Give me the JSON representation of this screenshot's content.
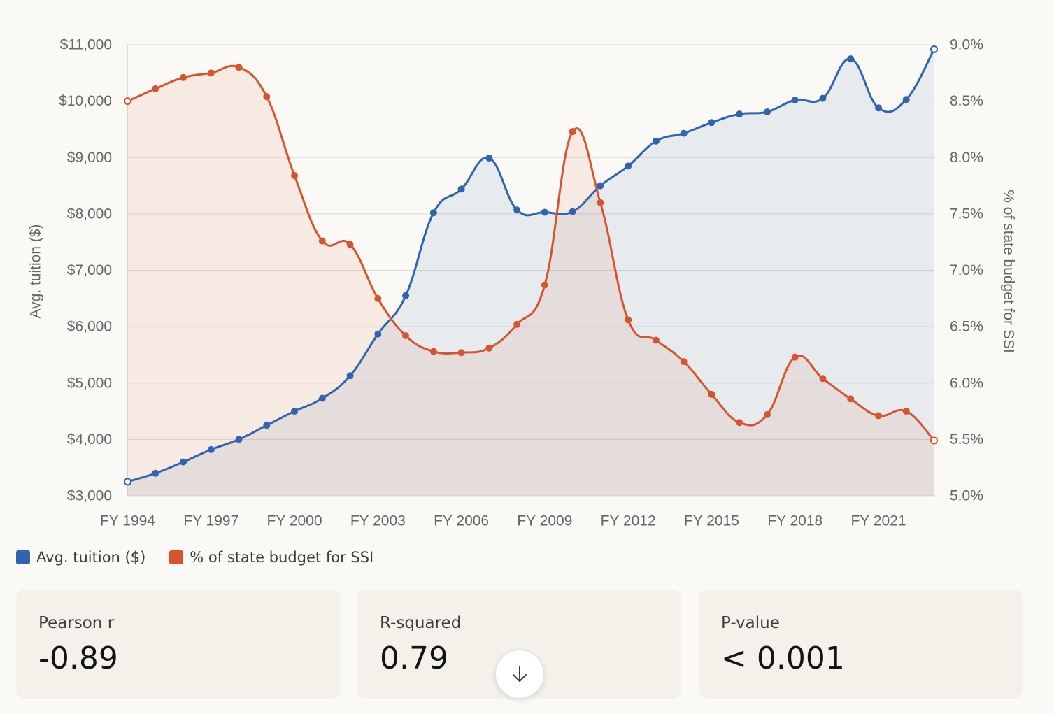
{
  "chart_data": {
    "type": "area",
    "x": [
      "FY 1994",
      "FY 1995",
      "FY 1996",
      "FY 1997",
      "FY 1998",
      "FY 1999",
      "FY 2000",
      "FY 2001",
      "FY 2002",
      "FY 2003",
      "FY 2004",
      "FY 2005",
      "FY 2006",
      "FY 2007",
      "FY 2008",
      "FY 2009",
      "FY 2010",
      "FY 2011",
      "FY 2012",
      "FY 2013",
      "FY 2014",
      "FY 2015",
      "FY 2016",
      "FY 2017",
      "FY 2018",
      "FY 2019",
      "FY 2020",
      "FY 2021",
      "FY 2022",
      "FY 2023"
    ],
    "x_tick_labels": [
      "FY 1994",
      "FY 1997",
      "FY 2000",
      "FY 2003",
      "FY 2006",
      "FY 2009",
      "FY 2012",
      "FY 2015",
      "FY 2018",
      "FY 2021"
    ],
    "series": [
      {
        "name": "Avg. tuition ($)",
        "axis": "left",
        "color": "#2f64b0",
        "values": [
          3250,
          3400,
          3600,
          3820,
          4000,
          4250,
          4500,
          4730,
          5130,
          5870,
          6550,
          8020,
          8440,
          8990,
          8070,
          8030,
          8040,
          8500,
          8850,
          9290,
          9430,
          9620,
          9770,
          9810,
          10020,
          10050,
          10750,
          9880,
          10030,
          10920
        ]
      },
      {
        "name": "% of state budget for SSI",
        "axis": "right",
        "color": "#d6552f",
        "values": [
          8.5,
          8.61,
          8.71,
          8.75,
          8.8,
          8.54,
          7.84,
          7.26,
          7.23,
          6.75,
          6.42,
          6.28,
          6.27,
          6.31,
          6.52,
          6.87,
          8.23,
          7.6,
          6.56,
          6.38,
          6.19,
          5.9,
          5.65,
          5.72,
          6.23,
          6.04,
          5.86,
          5.71,
          5.75,
          5.49
        ]
      }
    ],
    "ylim_left": [
      3000,
      11000
    ],
    "ylim_right": [
      5.0,
      9.0
    ],
    "y_ticks_left": [
      "$3,000",
      "$4,000",
      "$5,000",
      "$6,000",
      "$7,000",
      "$8,000",
      "$9,000",
      "$10,000",
      "$11,000"
    ],
    "y_ticks_right": [
      "5.0%",
      "5.5%",
      "6.0%",
      "6.5%",
      "7.0%",
      "7.5%",
      "8.0%",
      "8.5%",
      "9.0%"
    ],
    "ylabel_left": "Avg. tuition ($)",
    "ylabel_right": "% of state budget for SSI",
    "grid": true,
    "legend_position": "bottom-left"
  },
  "legend": {
    "items": [
      {
        "label": "Avg. tuition ($)",
        "color": "#2f64b0"
      },
      {
        "label": "% of state budget for SSI",
        "color": "#d6552f"
      }
    ]
  },
  "stats": [
    {
      "label": "Pearson r",
      "value": "-0.89"
    },
    {
      "label": "R-squared",
      "value": "0.79"
    },
    {
      "label": "P-value",
      "value": "< 0.001"
    }
  ],
  "scroll_button": {
    "icon": "arrow-down-icon"
  }
}
